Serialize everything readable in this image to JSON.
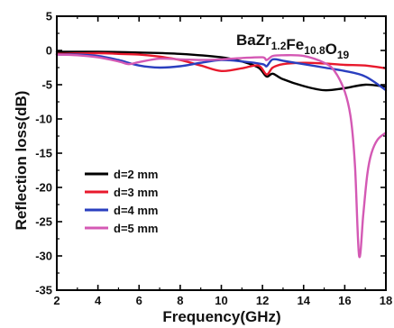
{
  "chart_data": {
    "type": "line",
    "title": "BaZr1.2Fe10.8O19",
    "title_parts": [
      {
        "text": "BaZr",
        "sub": false
      },
      {
        "text": "1.2",
        "sub": true
      },
      {
        "text": "Fe",
        "sub": false
      },
      {
        "text": "10.8",
        "sub": true
      },
      {
        "text": "O",
        "sub": false
      },
      {
        "text": "19",
        "sub": true
      }
    ],
    "xlabel": "Frequency(GHz)",
    "ylabel": "Reflection loss(dB)",
    "xlim": [
      2,
      18
    ],
    "ylim": [
      -35,
      5
    ],
    "xticks": [
      2,
      4,
      6,
      8,
      10,
      12,
      14,
      16,
      18
    ],
    "yticks": [
      5,
      0,
      -5,
      -10,
      -15,
      -20,
      -25,
      -30,
      -35
    ],
    "grid": false,
    "legend_position": "lower-left",
    "series": [
      {
        "name": "d=2 mm",
        "color": "#000000",
        "x": [
          2,
          4,
          6,
          8,
          10,
          11,
          11.8,
          12.2,
          12.5,
          13,
          14,
          15,
          16,
          17,
          18
        ],
        "y": [
          -0.2,
          -0.2,
          -0.3,
          -0.5,
          -1.0,
          -1.6,
          -2.5,
          -3.8,
          -3.4,
          -4.2,
          -5.2,
          -5.8,
          -5.5,
          -5.0,
          -5.3
        ]
      },
      {
        "name": "d=3 mm",
        "color": "#e8192c",
        "x": [
          2,
          4,
          5,
          6,
          7,
          8,
          9,
          10,
          11,
          11.8,
          12.2,
          12.5,
          13,
          14,
          15,
          16,
          17,
          18
        ],
        "y": [
          -0.5,
          -0.4,
          -0.5,
          -0.6,
          -0.9,
          -1.4,
          -2.2,
          -3.0,
          -2.6,
          -2.2,
          -3.5,
          -2.5,
          -2.0,
          -1.8,
          -1.9,
          -2.1,
          -2.2,
          -2.6
        ]
      },
      {
        "name": "d=4 mm",
        "color": "#2a3fbf",
        "x": [
          2,
          3,
          4,
          5,
          6,
          7,
          8,
          9,
          10,
          11,
          12,
          12.2,
          12.5,
          13,
          14,
          15,
          16,
          17,
          18
        ],
        "y": [
          -0.6,
          -0.6,
          -0.8,
          -1.4,
          -2.2,
          -2.5,
          -2.3,
          -1.8,
          -1.4,
          -1.6,
          -2.0,
          -2.3,
          -1.3,
          -1.5,
          -2.0,
          -2.5,
          -3.0,
          -3.8,
          -5.8
        ]
      },
      {
        "name": "d=5 mm",
        "color": "#d459b4",
        "x": [
          2,
          3,
          4,
          5,
          5.5,
          6,
          7,
          8,
          9,
          10,
          11,
          12,
          12.2,
          12.5,
          13,
          14,
          15,
          15.5,
          16,
          16.3,
          16.5,
          16.7,
          16.9,
          17.1,
          17.3,
          17.6,
          18
        ],
        "y": [
          -0.6,
          -0.7,
          -1.0,
          -1.6,
          -2.0,
          -1.7,
          -1.2,
          -1.3,
          -1.4,
          -1.3,
          -1.1,
          -1.0,
          -1.4,
          -0.8,
          -0.7,
          -0.8,
          -1.8,
          -3.0,
          -6.0,
          -10.0,
          -17.0,
          -30.0,
          -24.0,
          -18.0,
          -15.0,
          -13.0,
          -12.0
        ]
      }
    ]
  }
}
